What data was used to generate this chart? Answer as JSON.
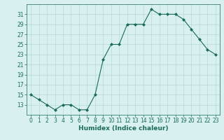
{
  "x": [
    0,
    1,
    2,
    3,
    4,
    5,
    6,
    7,
    8,
    9,
    10,
    11,
    12,
    13,
    14,
    15,
    16,
    17,
    18,
    19,
    20,
    21,
    22,
    23
  ],
  "y": [
    15,
    14,
    13,
    12,
    13,
    13,
    12,
    12,
    15,
    22,
    25,
    25,
    29,
    29,
    29,
    32,
    31,
    31,
    31,
    30,
    28,
    26,
    24,
    23
  ],
  "line_color": "#1a6b5a",
  "marker_color": "#1a6b5a",
  "bg_color": "#d8f0f0",
  "grid_color": "#b8d8d8",
  "xlabel": "Humidex (Indice chaleur)",
  "xlim": [
    -0.5,
    23.5
  ],
  "ylim": [
    11,
    33
  ],
  "yticks": [
    13,
    15,
    17,
    19,
    21,
    23,
    25,
    27,
    29,
    31
  ],
  "xticks": [
    0,
    1,
    2,
    3,
    4,
    5,
    6,
    7,
    8,
    9,
    10,
    11,
    12,
    13,
    14,
    15,
    16,
    17,
    18,
    19,
    20,
    21,
    22,
    23
  ],
  "tick_fontsize": 5.5,
  "xlabel_fontsize": 6.5
}
